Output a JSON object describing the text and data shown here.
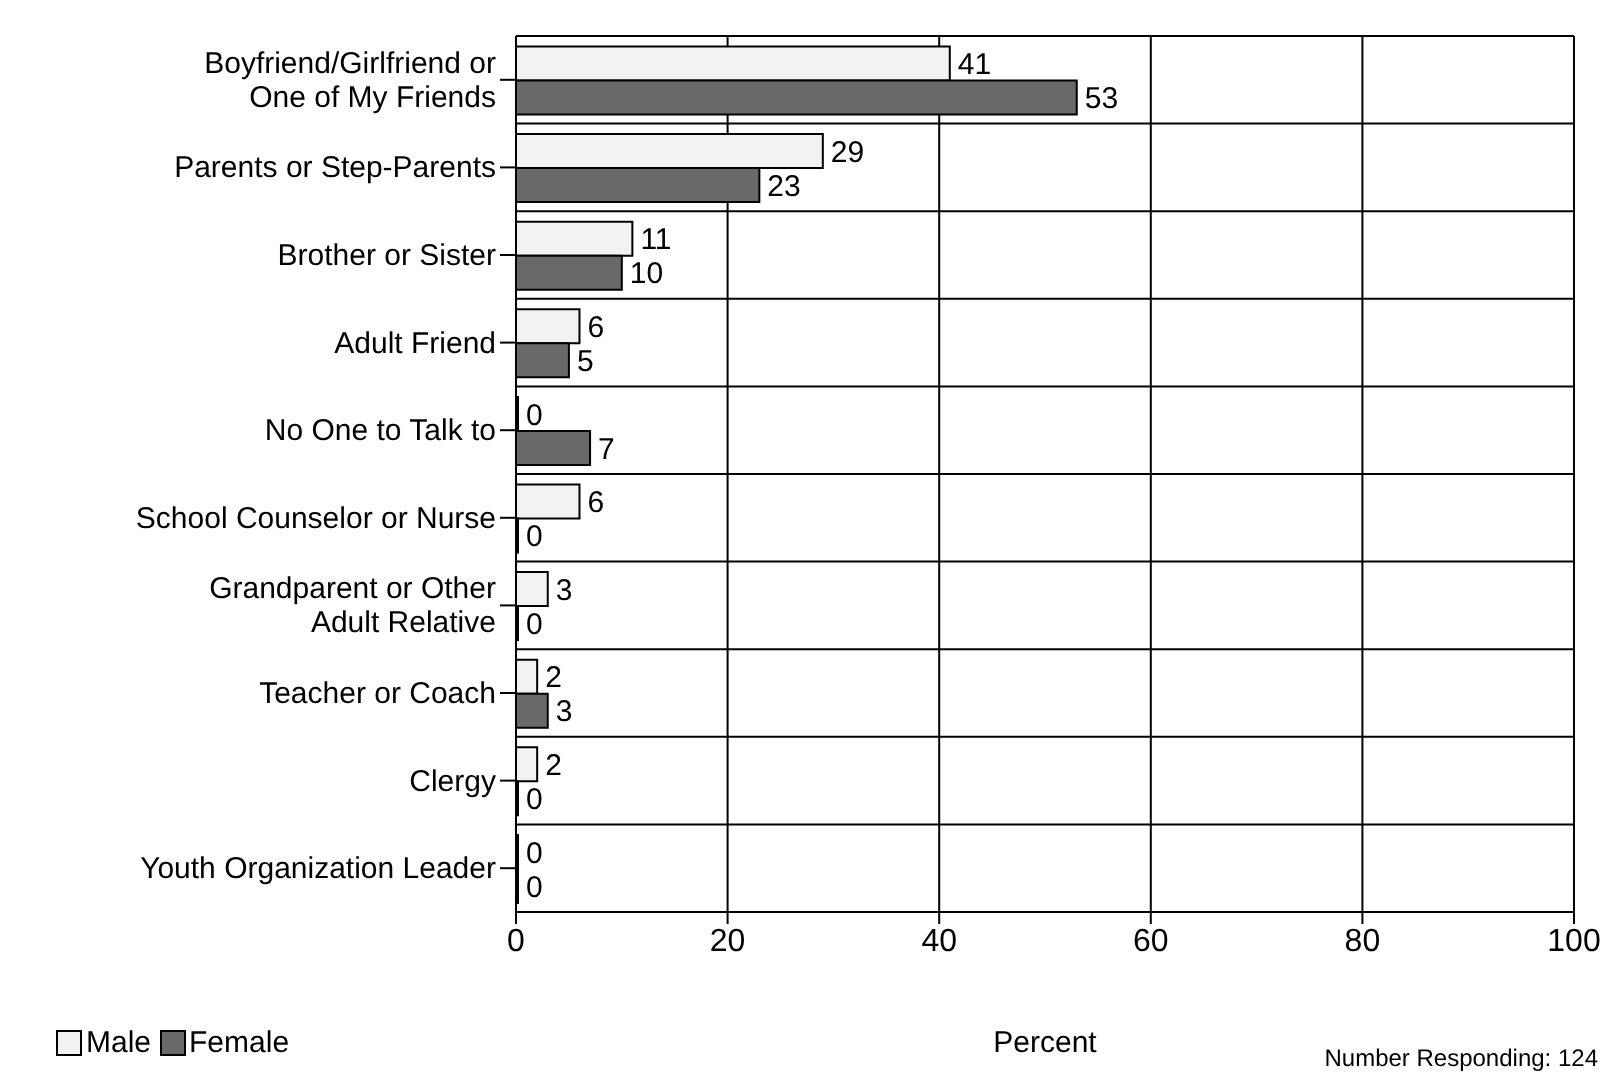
{
  "chart_data": {
    "type": "bar",
    "orientation": "horizontal",
    "xlabel": "Percent",
    "categories": [
      "Boyfriend/Girlfriend or One of My Friends",
      "Parents or Step-Parents",
      "Brother or Sister",
      "Adult Friend",
      "No One to Talk to",
      "School Counselor or Nurse",
      "Grandparent or Other Adult Relative",
      "Teacher or Coach",
      "Clergy",
      "Youth Organization Leader"
    ],
    "series": [
      {
        "name": "Male",
        "color": "#f2f2f2",
        "values": [
          41,
          29,
          11,
          6,
          0,
          6,
          3,
          2,
          2,
          0
        ]
      },
      {
        "name": "Female",
        "color": "#696969",
        "values": [
          53,
          23,
          10,
          5,
          7,
          0,
          0,
          3,
          0,
          0
        ]
      }
    ],
    "xlim": [
      0,
      100
    ],
    "xticks": [
      0,
      20,
      40,
      60,
      80,
      100
    ],
    "grid": true,
    "legend": "bottom left",
    "data_labels": true,
    "annotations": [
      "Number Responding: 124"
    ]
  }
}
